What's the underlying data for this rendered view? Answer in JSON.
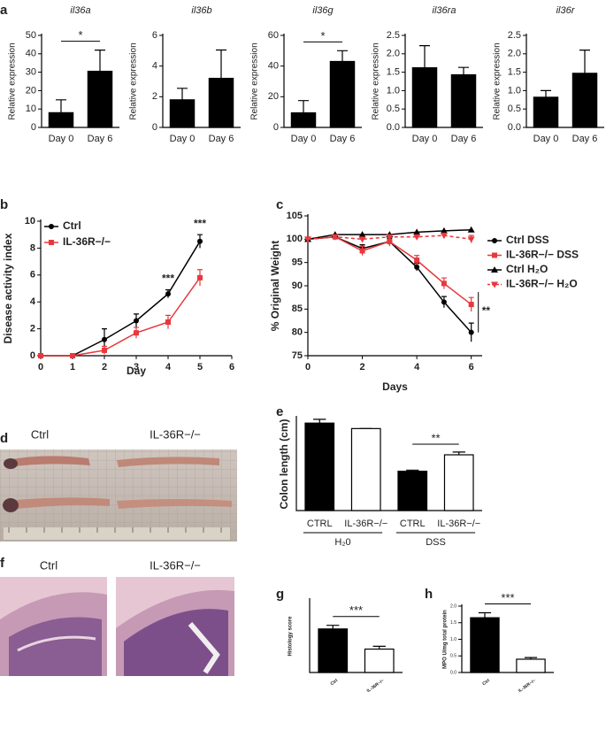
{
  "figure": {
    "panel_labels": [
      "a",
      "b",
      "c",
      "d",
      "e",
      "f",
      "g",
      "h"
    ],
    "photo_d": {
      "labels": [
        "Ctrl",
        "IL-36R−/−"
      ]
    },
    "photo_f": {
      "labels": [
        "Ctrl",
        "IL-36R−/−"
      ]
    }
  },
  "chart_data": [
    {
      "type": "bar",
      "title": "il36a",
      "ylabel": "Relative expression",
      "categories": [
        "Day 0",
        "Day 6"
      ],
      "values": [
        8,
        30.5
      ],
      "errors": [
        7,
        11.5
      ],
      "colors": [
        "#000000",
        "#000000"
      ],
      "ylim": [
        0,
        50
      ],
      "yticks": [
        0,
        10,
        20,
        30,
        40,
        50
      ],
      "annotation": "*"
    },
    {
      "type": "bar",
      "title": "il36b",
      "ylabel": "Relative expression",
      "categories": [
        "Day 0",
        "Day 6"
      ],
      "values": [
        1.8,
        3.2
      ],
      "errors": [
        0.75,
        1.85
      ],
      "colors": [
        "#000000",
        "#000000"
      ],
      "ylim": [
        0,
        6
      ],
      "yticks": [
        0,
        2,
        4,
        6
      ]
    },
    {
      "type": "bar",
      "title": "il36g",
      "ylabel": "Relative expression",
      "categories": [
        "Day 0",
        "Day 6"
      ],
      "values": [
        9.5,
        43
      ],
      "errors": [
        8,
        7
      ],
      "colors": [
        "#000000",
        "#000000"
      ],
      "ylim": [
        0,
        60
      ],
      "yticks": [
        0,
        20,
        40,
        60
      ],
      "annotation": "*"
    },
    {
      "type": "bar",
      "title": "il36ra",
      "ylabel": "Relative expression",
      "categories": [
        "Day 0",
        "Day 6"
      ],
      "values": [
        1.62,
        1.43
      ],
      "errors": [
        0.6,
        0.2
      ],
      "colors": [
        "#000000",
        "#000000"
      ],
      "ylim": [
        0,
        2.5
      ],
      "yticks": [
        {
          "value": 0,
          "label": "0.0"
        },
        0.5,
        {
          "value": 1,
          "label": "1.0"
        },
        1.5,
        {
          "value": 2,
          "label": "2.0"
        },
        2.5
      ]
    },
    {
      "type": "bar",
      "title": "il36r",
      "ylabel": "Relative expression",
      "categories": [
        "Day 0",
        "Day 6"
      ],
      "values": [
        0.82,
        1.47
      ],
      "errors": [
        0.18,
        0.63
      ],
      "colors": [
        "#000000",
        "#000000"
      ],
      "ylim": [
        0,
        2.5
      ],
      "yticks": [
        {
          "value": 0,
          "label": "0.0"
        },
        0.5,
        {
          "value": 1,
          "label": "1.0"
        },
        1.5,
        {
          "value": 2,
          "label": "2.0"
        },
        2.5
      ]
    },
    {
      "type": "line",
      "xlabel": "Day",
      "ylabel": "Disease activity index",
      "x": [
        0,
        1,
        2,
        3,
        4,
        5
      ],
      "xlim": [
        0,
        6
      ],
      "xticks": [
        0,
        1,
        2,
        3,
        4,
        5,
        6
      ],
      "ylim": [
        0,
        10
      ],
      "yticks": [
        0,
        2,
        4,
        6,
        8,
        10
      ],
      "legend": "upper left",
      "series": [
        {
          "name": "Ctrl",
          "color": "#000000",
          "marker": "circle",
          "values": [
            0,
            0,
            1.2,
            2.6,
            4.6,
            8.5
          ],
          "errors": [
            0,
            0,
            0.8,
            0.5,
            0.3,
            0.5
          ]
        },
        {
          "name": "IL-36R−/−",
          "color": "#e8383d",
          "marker": "square",
          "values": [
            0,
            0,
            0.4,
            1.7,
            2.5,
            5.8
          ],
          "errors": [
            0,
            0,
            0.3,
            0.4,
            0.5,
            0.6
          ]
        }
      ],
      "annotations": [
        {
          "text": "***",
          "x": 4
        },
        {
          "text": "***",
          "x": 5
        }
      ]
    },
    {
      "type": "line",
      "xlabel": "Days",
      "ylabel": "% Original Weight",
      "x": [
        0,
        1,
        2,
        3,
        4,
        5,
        6
      ],
      "xlim": [
        0,
        6.4
      ],
      "xticks": [
        0,
        2,
        4,
        6
      ],
      "ylim": [
        75,
        105
      ],
      "yticks": [
        75,
        80,
        85,
        90,
        95,
        100,
        105
      ],
      "legend": "right",
      "series": [
        {
          "name": "Ctrl DSS",
          "color": "#000000",
          "marker": "circle",
          "values": [
            100,
            100.5,
            98,
            99.5,
            94,
            86.5,
            80
          ],
          "errors": [
            0,
            0.3,
            0.8,
            0.7,
            0.8,
            1.2,
            2
          ]
        },
        {
          "name": "IL-36R−/− DSS",
          "color": "#e8383d",
          "marker": "square",
          "values": [
            100,
            100.5,
            97.5,
            99.5,
            95.5,
            90.5,
            86
          ],
          "errors": [
            0,
            0.3,
            1,
            1,
            1,
            1.2,
            1.5
          ]
        },
        {
          "name": "Ctrl H₂O",
          "color": "#000000",
          "marker": "triangle",
          "values": [
            100,
            101,
            101,
            101,
            101.5,
            101.8,
            102
          ],
          "errors": [
            0,
            0,
            0,
            0,
            0,
            0,
            0
          ]
        },
        {
          "name": "IL-36R−/− H₂O",
          "color": "#e8383d",
          "marker": "triangle-down",
          "dashed": true,
          "values": [
            100,
            100.5,
            100,
            100.5,
            100.5,
            100.8,
            100
          ],
          "errors": [
            0,
            0,
            0,
            0,
            0.3,
            0.5,
            0.8
          ]
        }
      ],
      "annotations": [
        {
          "text": "**",
          "x": 6
        }
      ]
    },
    {
      "type": "bar",
      "ylabel": "Colon length (cm)",
      "categories": [
        "CTRL",
        "IL-36R−/−",
        "CTRL",
        "IL-36R−/−"
      ],
      "groups": [
        "H₂0",
        "DSS"
      ],
      "values": [
        8,
        7.5,
        3.6,
        5.1
      ],
      "errors": [
        0.35,
        0,
        0.1,
        0.25
      ],
      "colors": [
        "#000000",
        "#ffffff",
        "#000000",
        "#ffffff"
      ],
      "ylim": [
        0,
        8.5
      ],
      "annotation": "**"
    },
    {
      "type": "bar",
      "ylabel": "Histology score",
      "categories": [
        "Ctrl",
        "IL-36R−/−"
      ],
      "values": [
        5.4,
        2.9
      ],
      "errors": [
        0.45,
        0.35
      ],
      "colors": [
        "#000000",
        "#ffffff"
      ],
      "ylim": [
        0,
        9
      ],
      "annotation": "***"
    },
    {
      "type": "bar",
      "ylabel": "MPO U/mg total protein",
      "categories": [
        "Ctrl",
        "IL-36R−/−"
      ],
      "values": [
        1.65,
        0.4
      ],
      "errors": [
        0.15,
        0.05
      ],
      "colors": [
        "#000000",
        "#ffffff"
      ],
      "ylim": [
        0,
        2
      ],
      "yticks": [
        {
          "value": 0,
          "label": "0.0"
        },
        0.5,
        {
          "value": 1,
          "label": "1.0"
        },
        1.5,
        {
          "value": 2,
          "label": "2.0"
        }
      ],
      "annotation": "***"
    }
  ]
}
